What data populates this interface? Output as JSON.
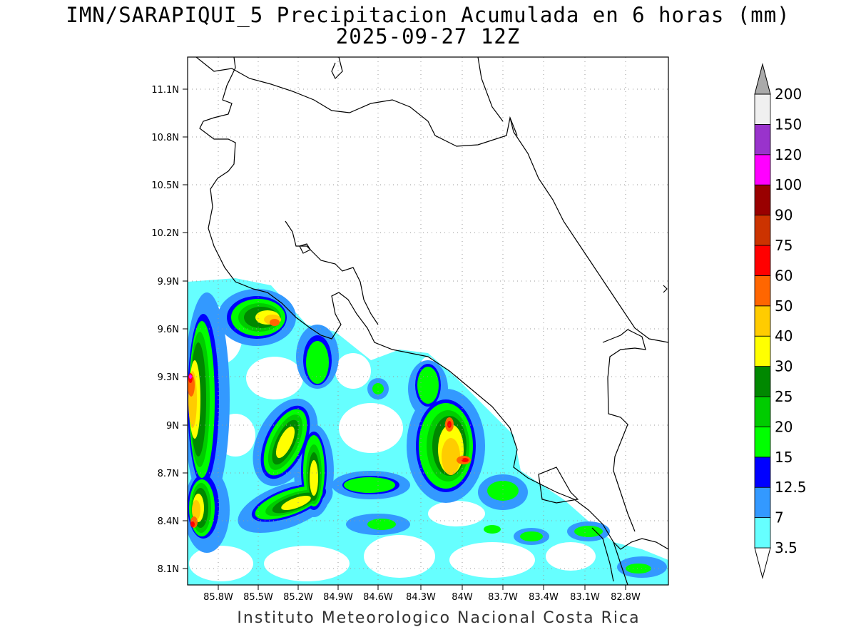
{
  "title": {
    "line1": "IMN/SARAPIQUI_5 Precipitacion Acumulada en 6 horas (mm)",
    "line2": "2025-09-27 12Z"
  },
  "credit": "Instituto Meteorologico Nacional Costa Rica",
  "map": {
    "lat_range": [
      8.0,
      11.3
    ],
    "lon_range": [
      -86.0,
      -82.6
    ],
    "lat_ticks": [
      "11.1N",
      "10.8N",
      "10.5N",
      "10.2N",
      "9.9N",
      "9.6N",
      "9.3N",
      "9N",
      "8.7N",
      "8.4N",
      "8.1N"
    ],
    "lon_ticks": [
      "85.8W",
      "85.5W",
      "85.2W",
      "84.9W",
      "84.6W",
      "84.3W",
      "84W",
      "83.7W",
      "83.4W",
      "83.1W",
      "82.8W"
    ],
    "grid": "dotted"
  },
  "colorbar": {
    "labels": [
      "3.5",
      "7",
      "12.5",
      "15",
      "20",
      "25",
      "30",
      "40",
      "50",
      "60",
      "75",
      "90",
      "100",
      "120",
      "150",
      "200"
    ],
    "colors": [
      "#66ffff",
      "#3399ff",
      "#0000ff",
      "#00ff00",
      "#00cc00",
      "#008800",
      "#ffff00",
      "#ffcc00",
      "#ff6600",
      "#ff0000",
      "#cc3300",
      "#990000",
      "#ff00ff",
      "#9933cc",
      "#f0f0f0",
      "#aaaaaa"
    ]
  }
}
